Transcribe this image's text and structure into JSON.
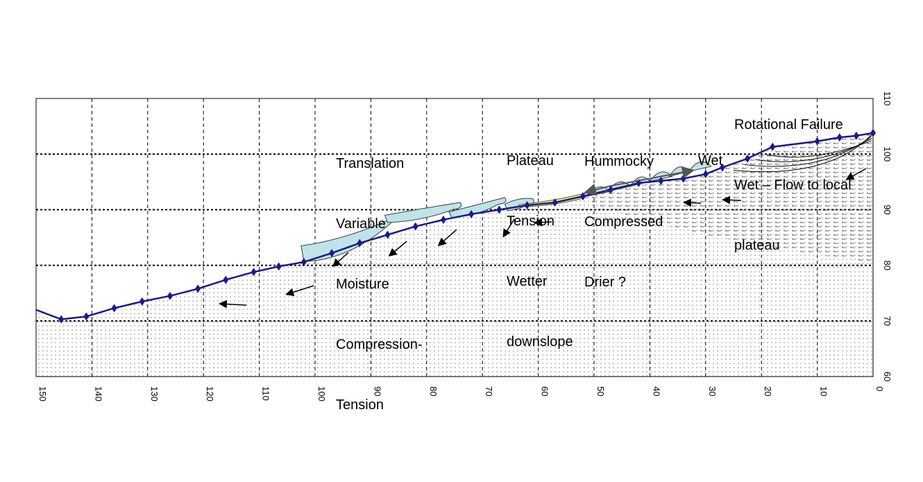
{
  "chart_data": {
    "type": "line",
    "x_axis": {
      "ticks": [
        150,
        140,
        130,
        120,
        110,
        100,
        90,
        80,
        70,
        60,
        50,
        40,
        30,
        20,
        10,
        0
      ],
      "range": [
        150,
        0
      ]
    },
    "y_axis": {
      "ticks": [
        110,
        100,
        90,
        80,
        70,
        60
      ],
      "range": [
        60,
        110
      ],
      "position": "right"
    },
    "grid": true,
    "series": [
      {
        "type": "line",
        "marker": "diamond",
        "color": "#1a1a8c",
        "points": [
          [
            150,
            72
          ],
          [
            145.5,
            70.3
          ],
          [
            141,
            70.8
          ],
          [
            136,
            72.3
          ],
          [
            131,
            73.5
          ],
          [
            126,
            74.5
          ],
          [
            121,
            75.8
          ],
          [
            116,
            77.4
          ],
          [
            111,
            78.8
          ],
          [
            106.5,
            79.8
          ],
          [
            102,
            80.6
          ],
          [
            97,
            82.2
          ],
          [
            92,
            84
          ],
          [
            87,
            85.5
          ],
          [
            82,
            87
          ],
          [
            77,
            88.2
          ],
          [
            72,
            89.2
          ],
          [
            67,
            90
          ],
          [
            62,
            90.8
          ],
          [
            57,
            91.3
          ],
          [
            52,
            92.4
          ],
          [
            47,
            93.6
          ],
          [
            42,
            94.8
          ],
          [
            38,
            95.2
          ],
          [
            34,
            95.6
          ],
          [
            30,
            96.4
          ],
          [
            27,
            97.6
          ],
          [
            22.5,
            99.2
          ],
          [
            18,
            101.3
          ],
          [
            10,
            102.3
          ],
          [
            6,
            103
          ],
          [
            3,
            103.3
          ],
          [
            0,
            103.8
          ]
        ]
      }
    ]
  },
  "annotations": {
    "translation": [
      "Translation",
      "Variable",
      "Moisture",
      "Compression-",
      "Tension"
    ],
    "plateau": [
      "Plateau",
      "Tension",
      "Wetter",
      "downslope"
    ],
    "hummocky": [
      "Hummocky",
      "Compressed",
      "Drier ?"
    ],
    "wet": "Wet",
    "rotational": [
      "Rotational Failure",
      "Wet – Flow to local",
      "plateau"
    ]
  },
  "colors": {
    "profile": "#1a1a8c",
    "lobe_fill": "#bfe3e8",
    "plateau_fill": "#f5f063",
    "grid": "#000000"
  }
}
